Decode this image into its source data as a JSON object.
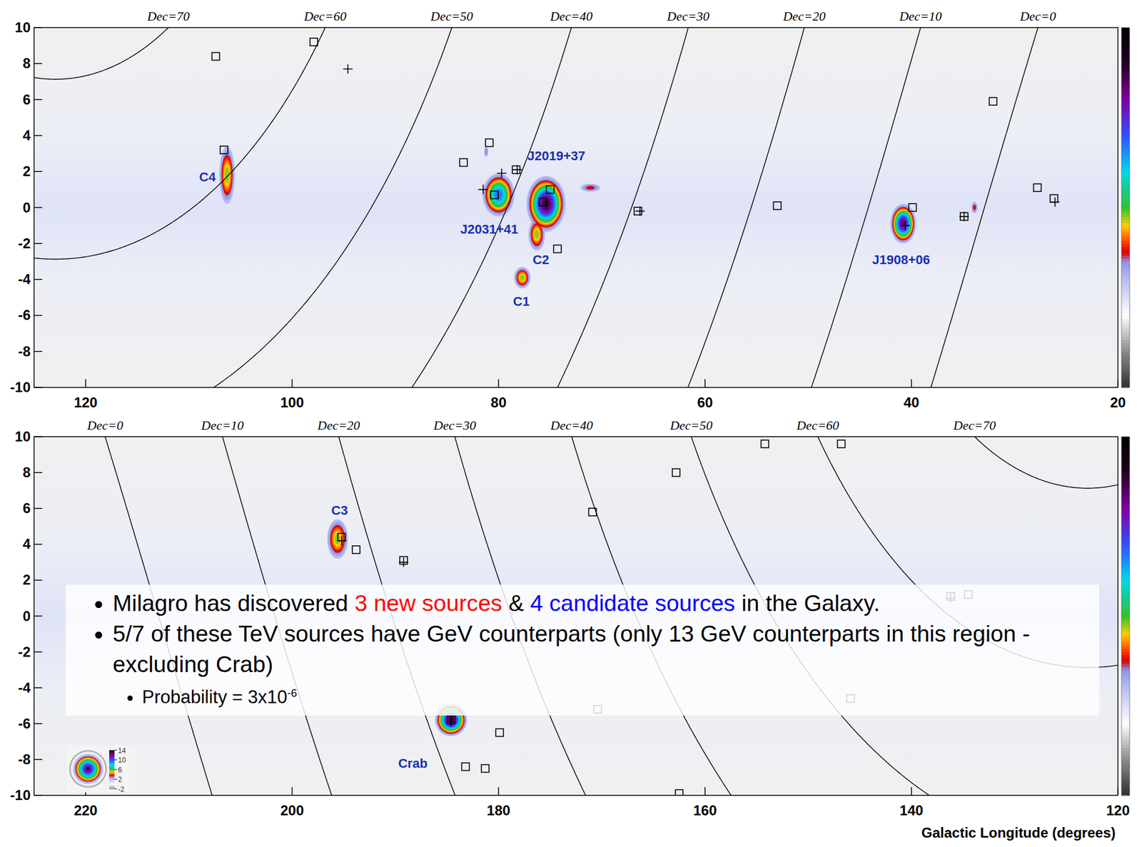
{
  "chart_data": [
    {
      "type": "sky_map",
      "xlim": [
        125,
        20
      ],
      "ylim": [
        -10,
        10
      ],
      "xticks": [
        120,
        100,
        80,
        60,
        40,
        20
      ],
      "yticks": [
        -10,
        -8,
        -6,
        -4,
        -2,
        0,
        2,
        4,
        6,
        8,
        10
      ],
      "dec_ticks": [
        {
          "value": 70,
          "label": "Dec=70"
        },
        {
          "value": 60,
          "label": "Dec=60"
        },
        {
          "value": 50,
          "label": "Dec=50"
        },
        {
          "value": 40,
          "label": "Dec=40"
        },
        {
          "value": 30,
          "label": "Dec=30"
        },
        {
          "value": 20,
          "label": "Dec=20"
        },
        {
          "value": 10,
          "label": "Dec=10"
        },
        {
          "value": 0,
          "label": "Dec=0"
        }
      ],
      "sources": {
        "l": [
          106.3,
          80.0,
          76.3,
          77.7,
          75.4,
          40.8,
          71.1,
          33.9,
          81.2
        ],
        "b": [
          1.8,
          0.7,
          -1.5,
          -3.9,
          0.2,
          -0.9,
          1.1,
          0.0,
          3.1
        ],
        "significance": [
          6,
          10,
          6,
          6,
          14,
          13,
          4,
          4,
          3.5
        ],
        "width": [
          1.5,
          3.1,
          1.6,
          1.6,
          3.8,
          2.5,
          1.9,
          0.6,
          0.4
        ],
        "height": [
          3.2,
          2.4,
          1.8,
          1.2,
          3.1,
          2.2,
          0.45,
          0.65,
          0.6
        ]
      },
      "series": [
        {
          "marker": "square",
          "color": "#000000",
          "x": [
            107.4,
            97.9,
            106.6,
            80.9,
            83.4,
            78.3,
            80.4,
            75.7,
            75.0,
            74.3,
            66.5,
            53.0,
            39.9,
            34.9,
            32.1,
            27.8,
            26.2
          ],
          "values": [
            8.4,
            9.2,
            3.2,
            3.6,
            2.5,
            2.1,
            0.7,
            0.3,
            1.0,
            -2.3,
            -0.2,
            0.1,
            0.0,
            -0.5,
            5.9,
            1.1,
            0.5
          ]
        },
        {
          "marker": "cross",
          "color": "#000000",
          "x": [
            94.6,
            79.7,
            78.2,
            81.5,
            66.3,
            34.9,
            40.6,
            26.1
          ],
          "values": [
            7.7,
            1.9,
            2.1,
            1.0,
            -0.2,
            -0.5,
            -1.0,
            0.3
          ]
        }
      ],
      "annotations": [
        {
          "text": "C4",
          "x": 108.2,
          "y": 1.7,
          "color": "#1a2fb0"
        },
        {
          "text": "J2019+37",
          "x": 74.4,
          "y": 2.9,
          "color": "#1a2fb0"
        },
        {
          "text": "J2031+41",
          "x": 80.9,
          "y": -1.2,
          "color": "#1a2fb0"
        },
        {
          "text": "C2",
          "x": 75.9,
          "y": -2.9,
          "color": "#1a2fb0"
        },
        {
          "text": "C1",
          "x": 77.8,
          "y": -5.2,
          "color": "#1a2fb0"
        },
        {
          "text": "J1908+06",
          "x": 41.0,
          "y": -2.9,
          "color": "#1a2fb0"
        }
      ],
      "colorbar": {
        "lim": [
          -4,
          16
        ]
      }
    },
    {
      "type": "sky_map",
      "xlim": [
        225,
        120
      ],
      "ylim": [
        -10,
        10
      ],
      "xticks": [
        220,
        200,
        180,
        160,
        140,
        120
      ],
      "yticks": [
        -10,
        -8,
        -6,
        -4,
        -2,
        0,
        2,
        4,
        6,
        8,
        10
      ],
      "xlabel": "Galactic Longitude (degrees)",
      "dec_ticks": [
        {
          "value": 0,
          "label": "Dec=0"
        },
        {
          "value": 10,
          "label": "Dec=10"
        },
        {
          "value": 20,
          "label": "Dec=20"
        },
        {
          "value": 30,
          "label": "Dec=30"
        },
        {
          "value": 40,
          "label": "Dec=40"
        },
        {
          "value": 50,
          "label": "Dec=50"
        },
        {
          "value": 60,
          "label": "Dec=60"
        },
        {
          "value": 70,
          "label": "Dec=70"
        }
      ],
      "sources": {
        "l": [
          195.6,
          184.6
        ],
        "b": [
          4.3,
          -5.8
        ],
        "significance": [
          6,
          14
        ],
        "width": [
          2.0,
          3.1
        ],
        "height": [
          2.2,
          1.8
        ]
      },
      "series": [
        {
          "marker": "square",
          "color": "#000000",
          "x": [
            195.2,
            193.8,
            189.2,
            170.9,
            162.8,
            154.2,
            146.8,
            162.5,
            145.9,
            170.4,
            179.9,
            183.2,
            181.3,
            184.6,
            136.2,
            134.5
          ],
          "values": [
            4.4,
            3.7,
            3.1,
            5.8,
            8.0,
            9.6,
            9.6,
            -9.9,
            -4.6,
            -5.2,
            -6.5,
            -8.4,
            -8.5,
            -5.8,
            1.1,
            1.2
          ]
        },
        {
          "marker": "cross",
          "color": "#000000",
          "x": [
            195.2,
            189.2,
            136.2,
            184.6
          ],
          "values": [
            4.2,
            3.0,
            1.0,
            -5.9
          ]
        }
      ],
      "annotations": [
        {
          "text": "C3",
          "x": 195.4,
          "y": 5.9,
          "color": "#1a2fb0"
        },
        {
          "text": "Crab",
          "x": 188.3,
          "y": -8.2,
          "color": "#1a2fb0"
        }
      ],
      "colorbar": {
        "lim": [
          -4,
          16
        ],
        "ticks": [
          14,
          10,
          6,
          2,
          -2
        ]
      },
      "notes": [
        {
          "segments": [
            {
              "text": "Milagro has discovered ",
              "color": "#000000"
            },
            {
              "text": "3 new sources",
              "color": "#ff0000"
            },
            {
              "text": " & ",
              "color": "#000000"
            },
            {
              "text": "4 candidate sources",
              "color": "#0000ff"
            },
            {
              "text": " in the Galaxy.",
              "color": "#000000"
            }
          ]
        },
        {
          "segments": [
            {
              "text": "5/7 of these TeV sources have GeV counterparts (only 13 GeV counterparts in this region - excluding Crab)",
              "color": "#000000"
            }
          ]
        },
        {
          "segments": [
            {
              "text": "Probability = 3x10",
              "color": "#000000"
            },
            {
              "text": "-6",
              "color": "#000000",
              "superscript": true
            }
          ],
          "level": 2
        }
      ]
    }
  ]
}
